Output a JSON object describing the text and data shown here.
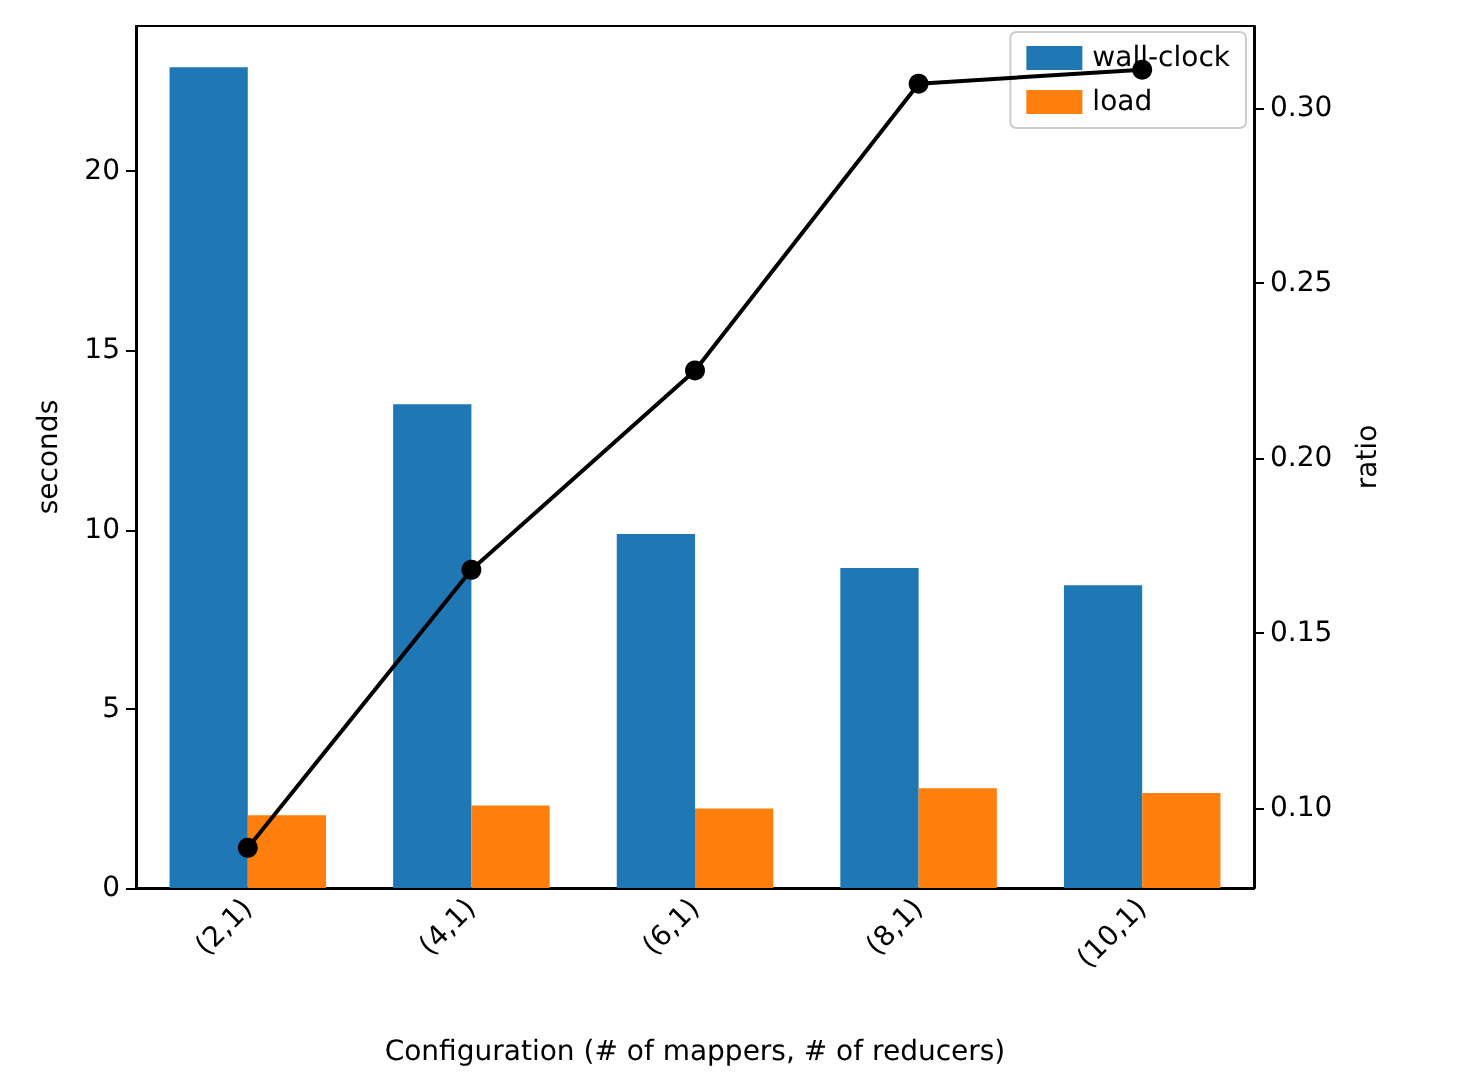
{
  "chart_data": {
    "type": "bar",
    "xlabel": "Configuration (# of mappers, # of reducers)",
    "ylabel": "seconds",
    "y2label": "ratio",
    "categories": [
      "(2,1)",
      "(4,1)",
      "(6,1)",
      "(8,1)",
      "(10,1)"
    ],
    "series": [
      {
        "name": "wall-clock",
        "color": "#1f77b4",
        "values": [
          22.9,
          13.5,
          9.88,
          8.93,
          8.45
        ]
      },
      {
        "name": "load",
        "color": "#ff7f0e",
        "values": [
          2.03,
          2.3,
          2.22,
          2.78,
          2.65
        ]
      },
      {
        "type": "line",
        "axis": "y2",
        "color": "#000000",
        "values": [
          0.0885,
          0.168,
          0.225,
          0.307,
          0.311
        ],
        "marker": "circle",
        "line_style": "solid"
      }
    ],
    "ylim": [
      0,
      24.05
    ],
    "yticks": [
      0,
      5,
      10,
      15,
      20
    ],
    "y2lim": [
      0.077,
      0.3235
    ],
    "y2ticks": [
      {
        "value": 0.1,
        "label": "0.10"
      },
      {
        "value": 0.15,
        "label": "0.15"
      },
      {
        "value": 0.2,
        "label": "0.20"
      },
      {
        "value": 0.25,
        "label": "0.25"
      },
      {
        "value": 0.3,
        "label": "0.30"
      }
    ],
    "legend": "top right",
    "grid": false
  }
}
